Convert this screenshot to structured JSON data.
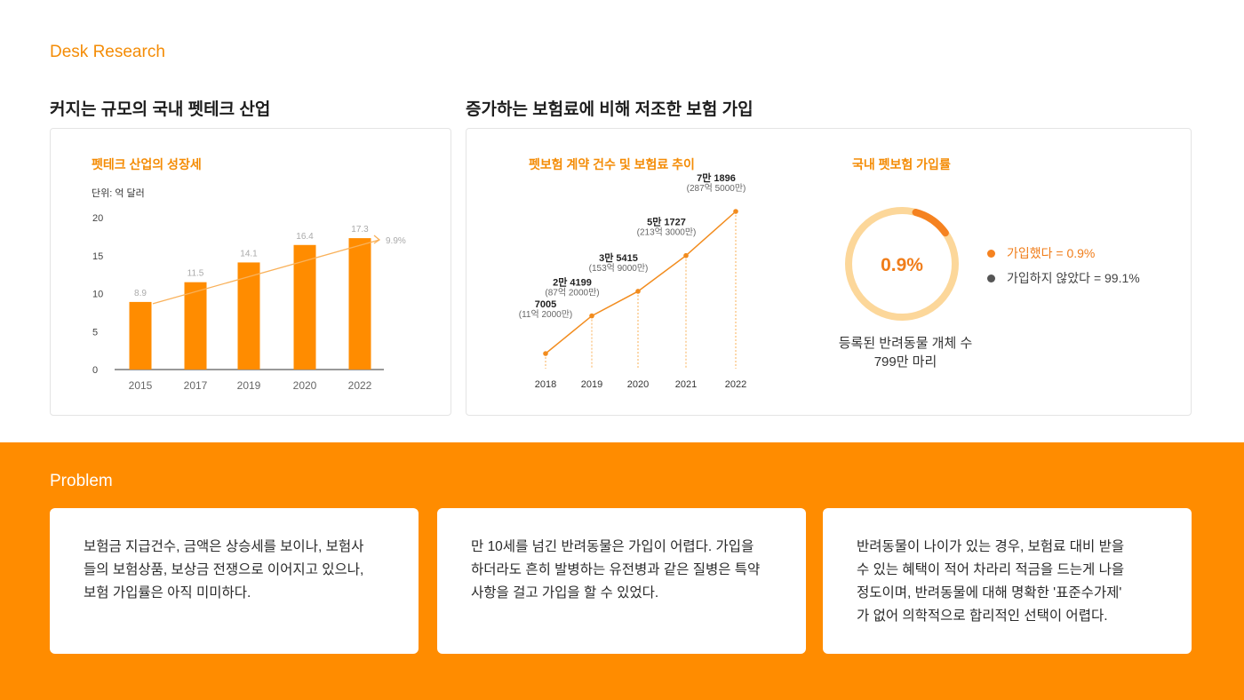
{
  "colors": {
    "accent": "#ff8c00",
    "accent_text": "#f48c06",
    "bar": "#ff8c00",
    "line": "#f28c1e",
    "trend": "#f9b15a",
    "donut_track": "#fcd79a",
    "donut_fill": "#f58220",
    "legend_dot_dark": "#555555"
  },
  "header": {
    "section_label": "Desk Research"
  },
  "left": {
    "subhead": "커지는 규모의 국내 펫테크 산업",
    "chart_title": "펫테크 산업의 성장세",
    "unit": "단위: 억 달러",
    "trend_label": "9.9%"
  },
  "right": {
    "subhead": "증가하는 보험료에 비해 저조한 보험 가입",
    "line_chart_title": "펫보험 계약 건수 및 보험료 추이",
    "donut_title": "국내 펫보험 가입률",
    "donut_center": "0.9%",
    "donut_caption_1": "등록된 반려동물 개체 수",
    "donut_caption_2": "799만 마리",
    "legend": [
      {
        "label": "가입했다 = 0.9%",
        "color": "#f58220"
      },
      {
        "label": "가입하지 않았다  = 99.1%",
        "color": "#555555"
      }
    ]
  },
  "problem": {
    "label": "Problem",
    "cards": [
      "보험금 지급건수, 금액은 상승세를 보이나, 보험사\n들의 보험상품, 보상금 전쟁으로 이어지고 있으나,\n보험 가입률은 아직 미미하다.",
      "만 10세를 넘긴 반려동물은 가입이 어렵다. 가입을\n하더라도 흔히 발병하는 유전병과 같은 질병은 특약\n사항을 걸고 가입을 할 수 있었다.",
      "반려동물이 나이가 있는 경우, 보험료 대비 받을\n수 있는 혜택이 적어 차라리 적금을 드는게 나을\n정도이며, 반려동물에 대해 명확한 '표준수가제'\n가 없어 의학적으로 합리적인 선택이 어렵다."
    ]
  },
  "chart_data": [
    {
      "type": "bar",
      "title": "펫테크 산업의 성장세",
      "ylabel": "단위: 억 달러",
      "categories": [
        "2015",
        "2017",
        "2019",
        "2020",
        "2022"
      ],
      "values": [
        8.9,
        11.5,
        14.1,
        16.4,
        17.3
      ],
      "value_labels": [
        "8.9",
        "11.5",
        "14.1",
        "16.4",
        "17.3"
      ],
      "yticks": [
        "0",
        "5",
        "10",
        "15",
        "20"
      ],
      "ylim": [
        0,
        20
      ],
      "annotation": "9.9%"
    },
    {
      "type": "line",
      "title": "펫보험 계약 건수 및 보험료 추이",
      "x": [
        "2018",
        "2019",
        "2020",
        "2021",
        "2022"
      ],
      "values": [
        7005,
        24199,
        35415,
        51727,
        71896
      ],
      "labels_main": [
        "7005",
        "2만 4199",
        "3만 5415",
        "5만 1727",
        "7만 1896"
      ],
      "labels_sub": [
        "(11억 2000만)",
        "(87억 2000만)",
        "(153억 9000만)",
        "(213억 3000만)",
        "(287억 5000만)"
      ]
    },
    {
      "type": "pie",
      "title": "국내 펫보험 가입률",
      "categories": [
        "가입했다",
        "가입하지 않았다"
      ],
      "values": [
        0.9,
        99.1
      ]
    }
  ]
}
